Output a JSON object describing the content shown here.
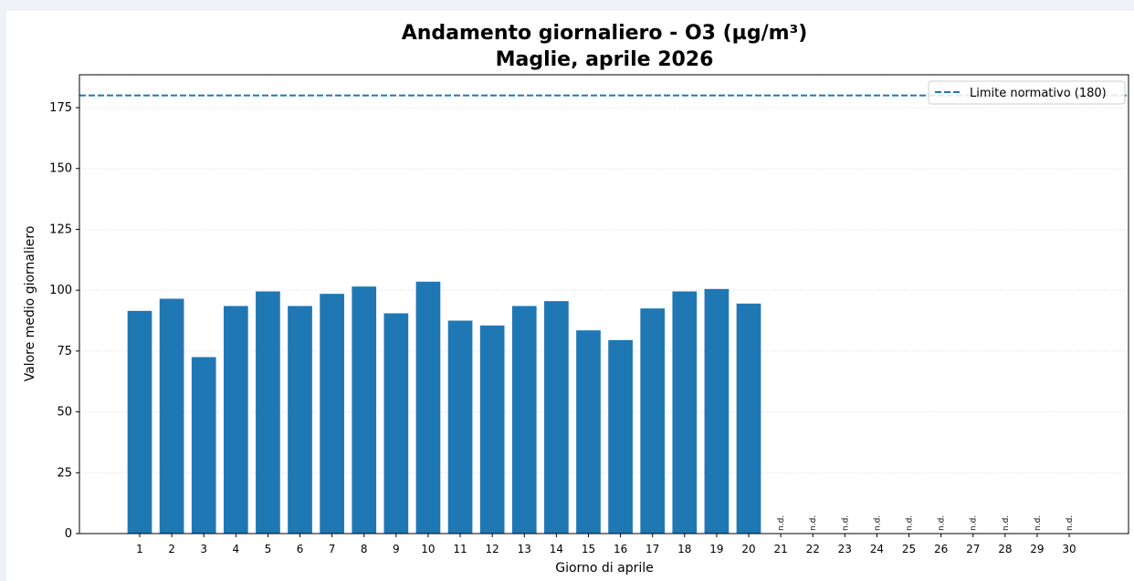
{
  "chart_data": {
    "type": "bar",
    "title": "Andamento giornaliero - O3 (µg/m³)",
    "subtitle": "Maglie, aprile 2026",
    "x_label": "Giorno di aprile",
    "y_label": "Valore medio giornaliero",
    "x": [
      1,
      2,
      3,
      4,
      5,
      6,
      7,
      8,
      9,
      10,
      11,
      12,
      13,
      14,
      15,
      16,
      17,
      18,
      19,
      20,
      21,
      22,
      23,
      24,
      25,
      26,
      27,
      28,
      29,
      30
    ],
    "values": [
      91.5,
      96.5,
      72.5,
      93.5,
      99.5,
      93.5,
      98.5,
      101.5,
      90.5,
      103.5,
      87.5,
      85.5,
      93.5,
      95.5,
      83.5,
      79.5,
      92.5,
      99.5,
      100.5,
      94.5,
      null,
      null,
      null,
      null,
      null,
      null,
      null,
      null,
      null,
      null
    ],
    "value_labels": [
      null,
      null,
      null,
      null,
      null,
      null,
      null,
      null,
      null,
      null,
      null,
      null,
      null,
      null,
      null,
      null,
      null,
      null,
      null,
      null,
      "n.d.",
      "n.d.",
      "n.d.",
      "n.d.",
      "n.d.",
      "n.d.",
      "n.d.",
      "n.d.",
      "n.d.",
      "n.d."
    ],
    "color": "#1f77b4",
    "xlim": [
      -0.88,
      31.85
    ],
    "ylim": [
      0,
      188.5
    ],
    "yticks": [
      0,
      25,
      50,
      75,
      100,
      125,
      150,
      175
    ],
    "grid": true,
    "reference_line": {
      "value": 180,
      "label": "Limite normativo (180)",
      "color": "#1f77b4"
    },
    "legend": "upper right"
  }
}
